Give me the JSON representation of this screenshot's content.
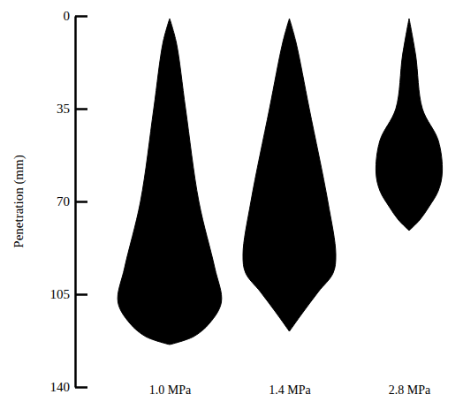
{
  "chart_data": {
    "type": "area",
    "y_label": "Penetration (mm)",
    "categories": [
      "1.0 MPa",
      "1.4 MPa",
      "2.8 MPa"
    ],
    "ylim": [
      0,
      140
    ],
    "yticks": [
      0,
      35,
      70,
      105,
      140
    ],
    "series": [
      {
        "color": "#000000",
        "depth": [
          1,
          10,
          35,
          70,
          95,
          108,
          116,
          121,
          124
        ],
        "width": [
          0,
          5,
          12,
          22,
          34,
          39,
          30,
          18,
          0
        ]
      },
      {
        "color": "#000000",
        "depth": [
          1,
          10,
          35,
          70,
          90,
          97,
          104,
          112,
          119
        ],
        "width": [
          0,
          5,
          15,
          29,
          35,
          33,
          22,
          10,
          0
        ]
      },
      {
        "color": "#000000",
        "depth": [
          1,
          15,
          35,
          47,
          59,
          66,
          72,
          77,
          81
        ],
        "width": [
          0,
          5,
          10,
          22,
          25,
          22,
          15,
          8,
          0
        ]
      }
    ]
  }
}
